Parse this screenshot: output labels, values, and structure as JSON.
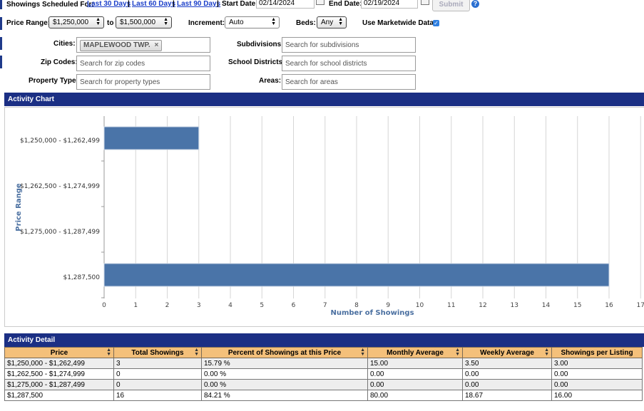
{
  "filters": {
    "showings_label": "Showings Scheduled For:",
    "last30": "Last 30 Days",
    "last60": "Last 60 Days",
    "last90": "Last 90 Days",
    "sep": "|",
    "start_label": "Start Date:",
    "start_value": "02/14/2024",
    "end_label": "End Date:",
    "end_value": "02/19/2024",
    "submit": "Submit",
    "help": "?",
    "price_range_label": "Price Range:",
    "price_min": "$1,250,000",
    "to_label": "to",
    "price_max": "$1,500,000",
    "increment_label": "Increment:",
    "increment_value": "Auto",
    "beds_label": "Beds:",
    "beds_value": "Any",
    "marketwide_label": "Use Marketwide Data:",
    "marketwide_checked": true,
    "cities_label": "Cities:",
    "city_chip": "MAPLEWOOD TWP.",
    "chip_remove": "×",
    "zip_label": "Zip Codes:",
    "zip_placeholder": "Search for zip codes",
    "property_label": "Property Type:",
    "property_placeholder": "Search for property types",
    "subdivisions_label": "Subdivisions:",
    "subdivisions_placeholder": "Search for subdivisions",
    "school_label": "School Districts:",
    "school_placeholder": "Search for school districts",
    "areas_label": "Areas:",
    "areas_placeholder": "Search for areas"
  },
  "activity_chart": {
    "header": "Activity Chart"
  },
  "chart_data": {
    "type": "bar",
    "orientation": "horizontal",
    "categories": [
      "$1,250,000 - $1,262,499",
      "$1,262,500 - $1,274,999",
      "$1,275,000 - $1,287,499",
      "$1,287,500"
    ],
    "values": [
      3,
      0,
      0,
      16
    ],
    "xlabel": "Number of Showings",
    "ylabel": "Price Range",
    "xlim": [
      0,
      17
    ],
    "xticks": [
      0,
      1,
      2,
      3,
      4,
      5,
      6,
      7,
      8,
      9,
      10,
      11,
      12,
      13,
      14,
      15,
      16,
      17
    ],
    "grid": true,
    "bar_color": "#4a74a8"
  },
  "activity_detail": {
    "header": "Activity Detail",
    "columns": [
      "Price",
      "Total Showings",
      "Percent of Showings at this Price",
      "Monthly Average",
      "Weekly Average",
      "Showings per Listing"
    ],
    "rows": [
      [
        "$1,250,000 - $1,262,499",
        "3",
        "15.79 %",
        "15.00",
        "3.50",
        "3.00"
      ],
      [
        "$1,262,500 - $1,274,999",
        "0",
        "0.00 %",
        "0.00",
        "0.00",
        "0.00"
      ],
      [
        "$1,275,000 - $1,287,499",
        "0",
        "0.00 %",
        "0.00",
        "0.00",
        "0.00"
      ],
      [
        "$1,287,500",
        "16",
        "84.21 %",
        "80.00",
        "18.67",
        "16.00"
      ]
    ]
  },
  "colors": {
    "panel_header": "#1b2f84",
    "table_header": "#f4c07a",
    "link": "#1a3ec9",
    "bar": "#4a74a8"
  }
}
